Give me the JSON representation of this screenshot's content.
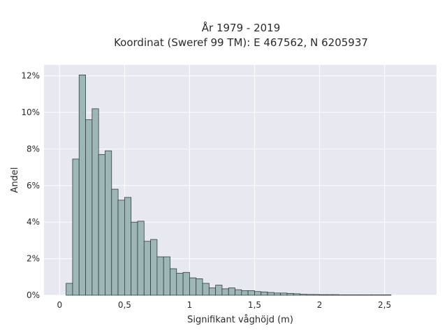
{
  "chart_data": {
    "type": "bar",
    "title_line1": "År 1979 - 2019",
    "title_line2": "Koordinat (Sweref 99 TM): E 467562, N 6205937",
    "xlabel": "Signifikant våghöjd (m)",
    "ylabel": "Andel",
    "xlim": [
      -0.12,
      2.9
    ],
    "ylim": [
      0,
      12.6
    ],
    "x_ticks": [
      0,
      0.5,
      1,
      1.5,
      2,
      2.5
    ],
    "x_tick_labels": [
      "0",
      "0,5",
      "1",
      "1,5",
      "2",
      "2,5"
    ],
    "y_ticks": [
      0,
      2,
      4,
      6,
      8,
      10,
      12
    ],
    "y_tick_labels": [
      "0%",
      "2%",
      "4%",
      "6%",
      "8%",
      "10%",
      "12%"
    ],
    "grid": true,
    "bar_color": "#9db7b7",
    "bar_edge_color": "#2f3f3f",
    "background_color": "#e8e8f1",
    "bin_width": 0.05,
    "bin_starts": [
      0.05,
      0.1,
      0.15,
      0.2,
      0.25,
      0.3,
      0.35,
      0.4,
      0.45,
      0.5,
      0.55,
      0.6,
      0.65,
      0.7,
      0.75,
      0.8,
      0.85,
      0.9,
      0.95,
      1.0,
      1.05,
      1.1,
      1.15,
      1.2,
      1.25,
      1.3,
      1.35,
      1.4,
      1.45,
      1.5,
      1.55,
      1.6,
      1.65,
      1.7,
      1.75,
      1.8,
      1.85,
      1.9,
      1.95,
      2.0,
      2.05,
      2.1,
      2.15,
      2.2,
      2.25,
      2.3,
      2.35,
      2.4,
      2.45,
      2.5
    ],
    "values": [
      0.65,
      7.45,
      12.05,
      9.6,
      10.2,
      7.7,
      7.9,
      5.8,
      5.2,
      5.35,
      4.0,
      4.05,
      2.95,
      3.05,
      2.1,
      2.1,
      1.45,
      1.2,
      1.25,
      0.95,
      0.9,
      0.65,
      0.4,
      0.55,
      0.35,
      0.4,
      0.3,
      0.25,
      0.25,
      0.2,
      0.18,
      0.15,
      0.12,
      0.12,
      0.1,
      0.08,
      0.05,
      0.04,
      0.04,
      0.03,
      0.03,
      0.03,
      0.02,
      0.02,
      0.02,
      0.02,
      0.02,
      0.02,
      0.02,
      0.02
    ]
  }
}
